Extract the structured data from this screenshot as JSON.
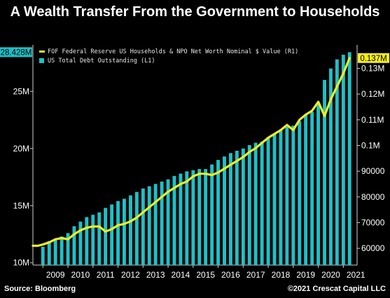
{
  "header": {
    "title": "A Wealth Transfer From the Government to Households",
    "source": "Source: Bloomberg",
    "credit": "©2021 Crescat Capital LLC"
  },
  "colors": {
    "background": "#000000",
    "bars": "#1fc0c7",
    "line": "#f4ec1e",
    "grid": "#3a3a3a"
  },
  "chart_data": {
    "type": "bar",
    "x_axis": {
      "tick_labels": [
        "2009",
        "2010",
        "2011",
        "2012",
        "2013",
        "2014",
        "2015",
        "2016",
        "2017",
        "2018",
        "2019",
        "2020",
        "2021"
      ],
      "range": [
        2008.6,
        2021.55
      ]
    },
    "y_left": {
      "tick_labels": [
        "10M",
        "15M",
        "20M",
        "25M"
      ],
      "tick_values": [
        10,
        15,
        20,
        25
      ],
      "range": [
        9.8,
        28.7
      ],
      "last_value_badge": "28.428M"
    },
    "y_right": {
      "tick_labels": [
        "60000",
        "70000",
        "80000",
        "90000",
        "0.1M",
        "0.11M",
        "0.12M",
        "0.13M"
      ],
      "tick_values": [
        60000,
        70000,
        80000,
        90000,
        100000,
        110000,
        120000,
        130000
      ],
      "range": [
        53500,
        137500
      ],
      "last_value_badge": "0.137M"
    },
    "grid": false,
    "legend_position": "top-left",
    "series": [
      {
        "name": "FOF Federal Reserve US Households & NPO Net Worth Nominal $ Value (R1)",
        "type": "line",
        "axis": "right",
        "x": [
          2008.6,
          2008.8,
          2009.0,
          2009.25,
          2009.5,
          2009.75,
          2010.0,
          2010.25,
          2010.5,
          2010.75,
          2011.0,
          2011.25,
          2011.5,
          2011.75,
          2012.0,
          2012.25,
          2012.5,
          2012.75,
          2013.0,
          2013.25,
          2013.5,
          2013.75,
          2014.0,
          2014.25,
          2014.5,
          2014.75,
          2015.0,
          2015.25,
          2015.5,
          2015.75,
          2016.0,
          2016.25,
          2016.5,
          2016.75,
          2017.0,
          2017.25,
          2017.5,
          2017.75,
          2018.0,
          2018.25,
          2018.5,
          2018.75,
          2019.0,
          2019.25,
          2019.5,
          2019.75,
          2020.0,
          2020.25,
          2020.5,
          2020.75,
          2021.0,
          2021.25
        ],
        "values": [
          61000,
          61000,
          61500,
          62300,
          63500,
          64000,
          63500,
          65500,
          67000,
          68000,
          68500,
          68500,
          66500,
          67500,
          69000,
          69500,
          70500,
          72000,
          74000,
          76000,
          78000,
          80000,
          82000,
          83500,
          85000,
          86000,
          88000,
          89000,
          89000,
          88500,
          89500,
          91000,
          92500,
          94000,
          95500,
          97500,
          99000,
          101000,
          103000,
          104500,
          106000,
          108000,
          106000,
          110000,
          112000,
          113500,
          117000,
          111500,
          118000,
          123000,
          128000,
          134000
        ]
      },
      {
        "name": "US Total Debt Outstanding (L1)",
        "type": "bar",
        "axis": "left",
        "x": [
          2009.0,
          2009.25,
          2009.5,
          2009.75,
          2010.0,
          2010.25,
          2010.5,
          2010.75,
          2011.0,
          2011.25,
          2011.5,
          2011.75,
          2012.0,
          2012.25,
          2012.5,
          2012.75,
          2013.0,
          2013.25,
          2013.5,
          2013.75,
          2014.0,
          2014.25,
          2014.5,
          2014.75,
          2015.0,
          2015.25,
          2015.5,
          2015.75,
          2016.0,
          2016.25,
          2016.5,
          2016.75,
          2017.0,
          2017.25,
          2017.5,
          2017.75,
          2018.0,
          2018.25,
          2018.5,
          2018.75,
          2019.0,
          2019.25,
          2019.5,
          2019.75,
          2020.0,
          2020.25,
          2020.5,
          2020.75,
          2021.0,
          2021.25
        ],
        "values": [
          11.4,
          11.9,
          12.0,
          12.3,
          12.6,
          13.2,
          13.6,
          14.0,
          14.2,
          14.4,
          14.8,
          15.1,
          15.4,
          15.6,
          15.9,
          16.2,
          16.5,
          16.7,
          16.9,
          17.1,
          17.3,
          17.6,
          17.8,
          18.0,
          18.1,
          18.2,
          18.2,
          18.6,
          19.0,
          19.3,
          19.6,
          19.8,
          20.0,
          20.3,
          20.5,
          20.6,
          21.0,
          21.3,
          21.6,
          21.9,
          22.0,
          22.4,
          23.0,
          23.2,
          24.0,
          26.0,
          27.0,
          27.8,
          28.2,
          28.43
        ]
      }
    ]
  }
}
